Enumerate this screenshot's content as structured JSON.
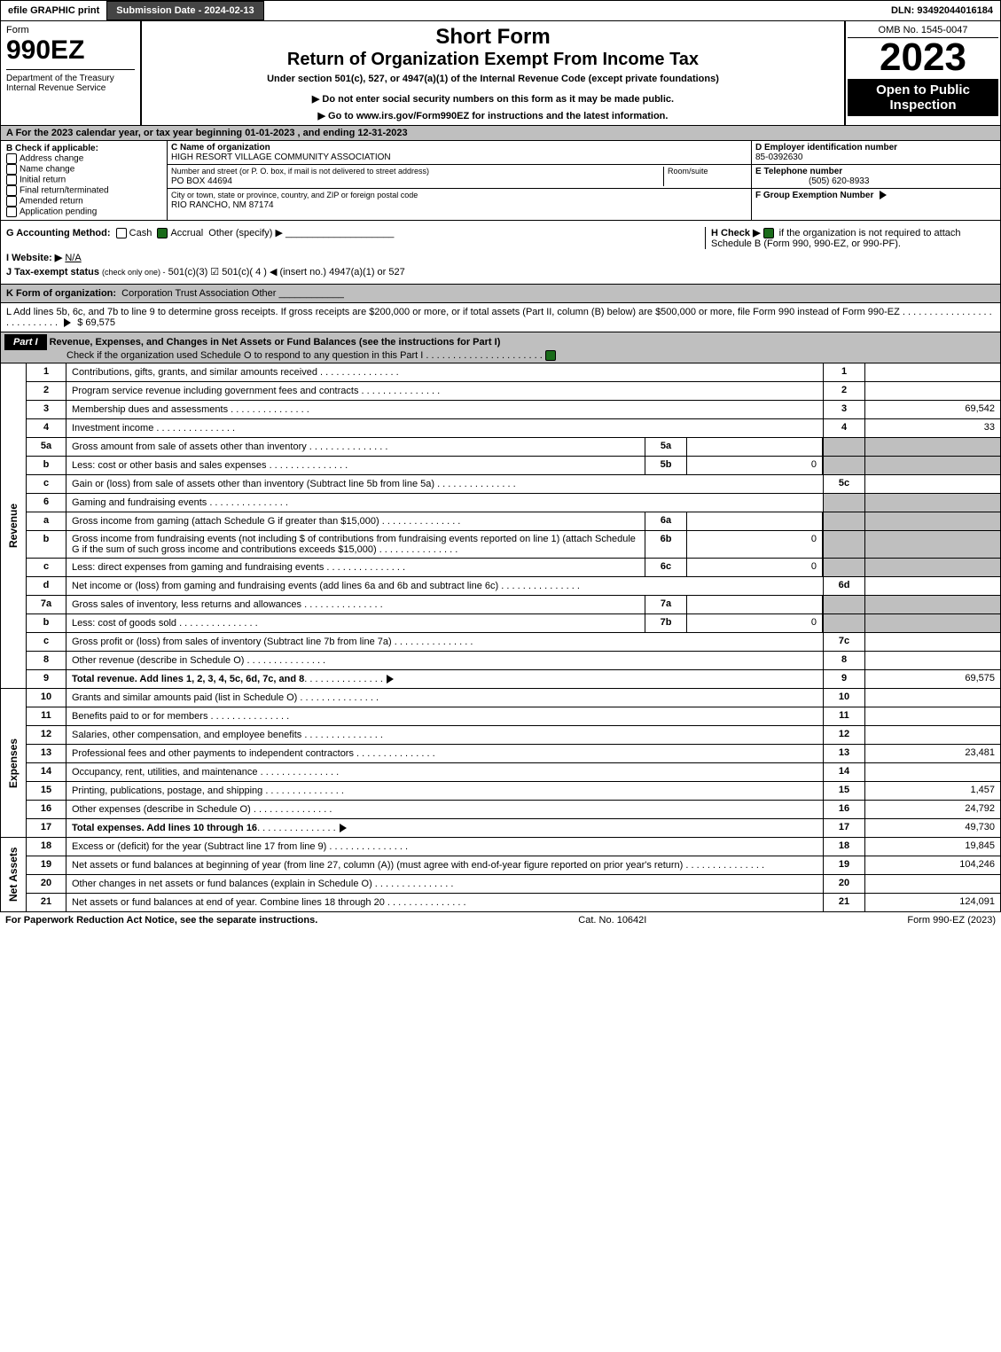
{
  "topbar": {
    "efile": "efile GRAPHIC print",
    "subdate_label": "Submission Date - 2024-02-13",
    "dln": "DLN: 93492044016184"
  },
  "header": {
    "form_word": "Form",
    "form_num": "990EZ",
    "dept": "Department of the Treasury",
    "irs": "Internal Revenue Service",
    "title1": "Short Form",
    "title2": "Return of Organization Exempt From Income Tax",
    "sub1": "Under section 501(c), 527, or 4947(a)(1) of the Internal Revenue Code (except private foundations)",
    "sub2": "▶ Do not enter social security numbers on this form as it may be made public.",
    "sub3": "▶ Go to www.irs.gov/Form990EZ for instructions and the latest information.",
    "omb": "OMB No. 1545-0047",
    "year": "2023",
    "open": "Open to Public Inspection"
  },
  "secA": "A  For the 2023 calendar year, or tax year beginning 01-01-2023 , and ending 12-31-2023",
  "b": {
    "label": "B  Check if applicable:",
    "items": [
      "Address change",
      "Name change",
      "Initial return",
      "Final return/terminated",
      "Amended return",
      "Application pending"
    ]
  },
  "c": {
    "name_lbl": "C Name of organization",
    "name": "HIGH RESORT VILLAGE COMMUNITY ASSOCIATION",
    "addr_lbl": "Number and street (or P. O. box, if mail is not delivered to street address)",
    "room_lbl": "Room/suite",
    "addr": "PO BOX 44694",
    "city_lbl": "City or town, state or province, country, and ZIP or foreign postal code",
    "city": "RIO RANCHO, NM  87174"
  },
  "de": {
    "d_lbl": "D Employer identification number",
    "d_val": "85-0392630",
    "e_lbl": "E Telephone number",
    "e_val": "(505) 620-8933",
    "f_lbl": "F Group Exemption Number",
    "f_arrow": "▶"
  },
  "g": {
    "label": "G Accounting Method:",
    "cash": "Cash",
    "accrual": "Accrual",
    "other": "Other (specify) ▶"
  },
  "h": {
    "label": "H  Check ▶",
    "text": "if the organization is not required to attach Schedule B (Form 990, 990-EZ, or 990-PF)."
  },
  "i": {
    "label": "I Website: ▶",
    "val": "N/A"
  },
  "j": {
    "label": "J Tax-exempt status",
    "sub": "(check only one) -",
    "opts": "501(c)(3)   ☑ 501(c)( 4 ) ◀ (insert no.)   4947(a)(1) or    527"
  },
  "k": {
    "label": "K Form of organization:",
    "opts": "Corporation    Trust    Association    Other"
  },
  "l": {
    "text": "L Add lines 5b, 6c, and 7b to line 9 to determine gross receipts. If gross receipts are $200,000 or more, or if total assets (Part II, column (B) below) are $500,000 or more, file Form 990 instead of Form 990-EZ",
    "arrow": "▶",
    "val": "$ 69,575"
  },
  "part1": {
    "hdr": "Part I",
    "title": "Revenue, Expenses, and Changes in Net Assets or Fund Balances (see the instructions for Part I)",
    "check": "Check if the organization used Schedule O to respond to any question in this Part I"
  },
  "lines": {
    "1": {
      "d": "Contributions, gifts, grants, and similar amounts received",
      "rn": "1",
      "rv": ""
    },
    "2": {
      "d": "Program service revenue including government fees and contracts",
      "rn": "2",
      "rv": ""
    },
    "3": {
      "d": "Membership dues and assessments",
      "rn": "3",
      "rv": "69,542"
    },
    "4": {
      "d": "Investment income",
      "rn": "4",
      "rv": "33"
    },
    "5a": {
      "d": "Gross amount from sale of assets other than inventory",
      "mn": "5a",
      "mv": ""
    },
    "5b": {
      "d": "Less: cost or other basis and sales expenses",
      "mn": "5b",
      "mv": "0"
    },
    "5c": {
      "d": "Gain or (loss) from sale of assets other than inventory (Subtract line 5b from line 5a)",
      "rn": "5c",
      "rv": ""
    },
    "6": {
      "d": "Gaming and fundraising events"
    },
    "6a": {
      "d": "Gross income from gaming (attach Schedule G if greater than $15,000)",
      "mn": "6a",
      "mv": ""
    },
    "6b": {
      "d": "Gross income from fundraising events (not including $             of contributions from fundraising events reported on line 1) (attach Schedule G if the sum of such gross income and contributions exceeds $15,000)",
      "mn": "6b",
      "mv": "0"
    },
    "6c": {
      "d": "Less: direct expenses from gaming and fundraising events",
      "mn": "6c",
      "mv": "0"
    },
    "6d": {
      "d": "Net income or (loss) from gaming and fundraising events (add lines 6a and 6b and subtract line 6c)",
      "rn": "6d",
      "rv": ""
    },
    "7a": {
      "d": "Gross sales of inventory, less returns and allowances",
      "mn": "7a",
      "mv": ""
    },
    "7b": {
      "d": "Less: cost of goods sold",
      "mn": "7b",
      "mv": "0"
    },
    "7c": {
      "d": "Gross profit or (loss) from sales of inventory (Subtract line 7b from line 7a)",
      "rn": "7c",
      "rv": ""
    },
    "8": {
      "d": "Other revenue (describe in Schedule O)",
      "rn": "8",
      "rv": ""
    },
    "9": {
      "d": "Total revenue. Add lines 1, 2, 3, 4, 5c, 6d, 7c, and 8",
      "rn": "9",
      "rv": "69,575",
      "arrow": true,
      "bold": true
    },
    "10": {
      "d": "Grants and similar amounts paid (list in Schedule O)",
      "rn": "10",
      "rv": ""
    },
    "11": {
      "d": "Benefits paid to or for members",
      "rn": "11",
      "rv": ""
    },
    "12": {
      "d": "Salaries, other compensation, and employee benefits",
      "rn": "12",
      "rv": ""
    },
    "13": {
      "d": "Professional fees and other payments to independent contractors",
      "rn": "13",
      "rv": "23,481"
    },
    "14": {
      "d": "Occupancy, rent, utilities, and maintenance",
      "rn": "14",
      "rv": ""
    },
    "15": {
      "d": "Printing, publications, postage, and shipping",
      "rn": "15",
      "rv": "1,457"
    },
    "16": {
      "d": "Other expenses (describe in Schedule O)",
      "rn": "16",
      "rv": "24,792"
    },
    "17": {
      "d": "Total expenses. Add lines 10 through 16",
      "rn": "17",
      "rv": "49,730",
      "arrow": true,
      "bold": true
    },
    "18": {
      "d": "Excess or (deficit) for the year (Subtract line 17 from line 9)",
      "rn": "18",
      "rv": "19,845"
    },
    "19": {
      "d": "Net assets or fund balances at beginning of year (from line 27, column (A)) (must agree with end-of-year figure reported on prior year's return)",
      "rn": "19",
      "rv": "104,246"
    },
    "20": {
      "d": "Other changes in net assets or fund balances (explain in Schedule O)",
      "rn": "20",
      "rv": ""
    },
    "21": {
      "d": "Net assets or fund balances at end of year. Combine lines 18 through 20",
      "rn": "21",
      "rv": "124,091"
    }
  },
  "sides": {
    "rev": "Revenue",
    "exp": "Expenses",
    "net": "Net Assets"
  },
  "footer": {
    "left": "For Paperwork Reduction Act Notice, see the separate instructions.",
    "mid": "Cat. No. 10642I",
    "right": "Form 990-EZ (2023)"
  }
}
